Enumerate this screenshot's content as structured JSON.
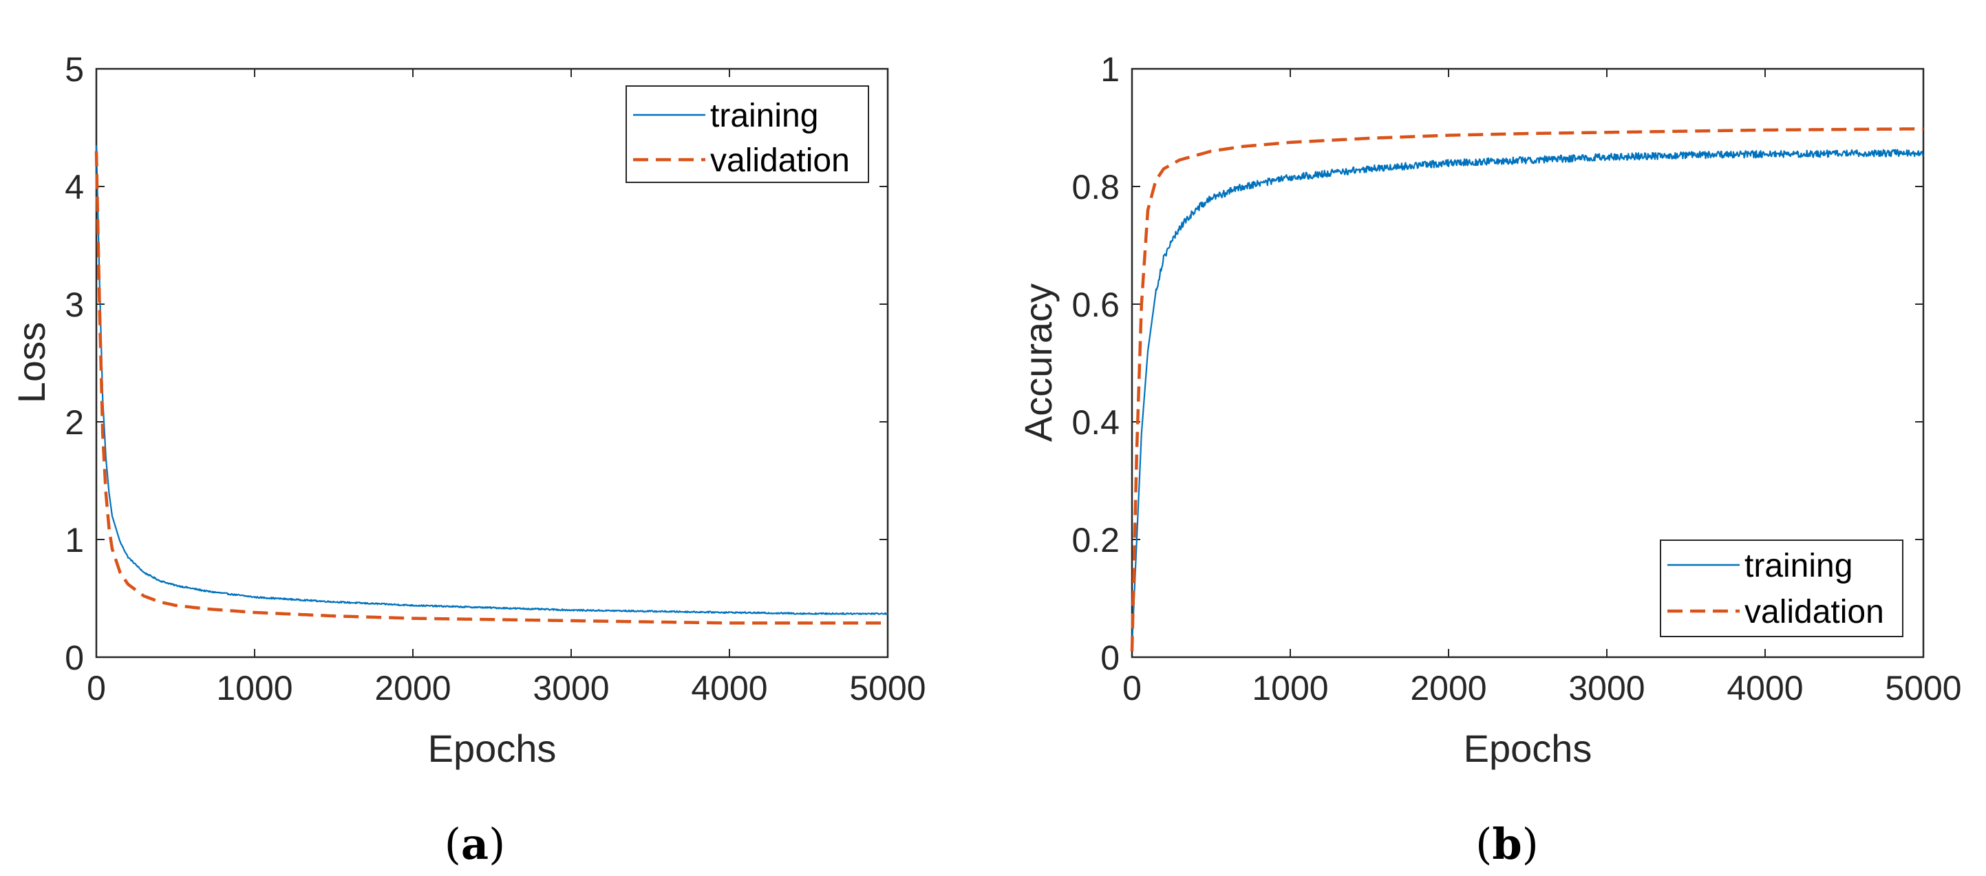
{
  "chart_data": [
    {
      "type": "line",
      "panel_label": "a",
      "xlabel": "Epochs",
      "ylabel": "Loss",
      "xlim": [
        0,
        5000
      ],
      "ylim": [
        0,
        5
      ],
      "xticks": [
        0,
        1000,
        2000,
        3000,
        4000,
        5000
      ],
      "yticks": [
        0,
        1,
        2,
        3,
        4,
        5
      ],
      "legend_position": "top-right",
      "series": [
        {
          "name": "training",
          "color": "#0072BD",
          "style": "solid",
          "noise": 0.006,
          "points": [
            [
              0,
              4.35
            ],
            [
              20,
              3.2
            ],
            [
              40,
              2.2
            ],
            [
              60,
              1.7
            ],
            [
              80,
              1.4
            ],
            [
              100,
              1.2
            ],
            [
              150,
              0.98
            ],
            [
              200,
              0.85
            ],
            [
              300,
              0.72
            ],
            [
              400,
              0.65
            ],
            [
              500,
              0.61
            ],
            [
              700,
              0.56
            ],
            [
              1000,
              0.51
            ],
            [
              1500,
              0.47
            ],
            [
              2000,
              0.44
            ],
            [
              2500,
              0.42
            ],
            [
              3000,
              0.4
            ],
            [
              3500,
              0.39
            ],
            [
              4000,
              0.38
            ],
            [
              4500,
              0.37
            ],
            [
              5000,
              0.37
            ]
          ]
        },
        {
          "name": "validation",
          "color": "#D95319",
          "style": "dashed",
          "noise": 0,
          "points": [
            [
              0,
              4.3
            ],
            [
              20,
              3.0
            ],
            [
              40,
              1.9
            ],
            [
              60,
              1.4
            ],
            [
              80,
              1.1
            ],
            [
              100,
              0.92
            ],
            [
              150,
              0.72
            ],
            [
              200,
              0.62
            ],
            [
              300,
              0.52
            ],
            [
              400,
              0.47
            ],
            [
              500,
              0.44
            ],
            [
              700,
              0.41
            ],
            [
              1000,
              0.38
            ],
            [
              1500,
              0.35
            ],
            [
              2000,
              0.33
            ],
            [
              2500,
              0.32
            ],
            [
              3000,
              0.31
            ],
            [
              3500,
              0.3
            ],
            [
              4000,
              0.29
            ],
            [
              4500,
              0.29
            ],
            [
              5000,
              0.29
            ]
          ]
        }
      ]
    },
    {
      "type": "line",
      "panel_label": "b",
      "xlabel": "Epochs",
      "ylabel": "Accuracy",
      "xlim": [
        0,
        5000
      ],
      "ylim": [
        0,
        1
      ],
      "xticks": [
        0,
        1000,
        2000,
        3000,
        4000,
        5000
      ],
      "yticks": [
        0,
        0.2,
        0.4,
        0.6,
        0.8,
        1
      ],
      "ytick_labels": [
        "0",
        "0.2",
        "0.4",
        "0.6",
        "0.8",
        "1"
      ],
      "legend_position": "bottom-right",
      "series": [
        {
          "name": "training",
          "color": "#0072BD",
          "style": "solid",
          "noise": 0.006,
          "points": [
            [
              0,
              0.02
            ],
            [
              30,
              0.2
            ],
            [
              60,
              0.38
            ],
            [
              100,
              0.52
            ],
            [
              150,
              0.62
            ],
            [
              200,
              0.68
            ],
            [
              300,
              0.73
            ],
            [
              400,
              0.76
            ],
            [
              500,
              0.78
            ],
            [
              700,
              0.8
            ],
            [
              1000,
              0.815
            ],
            [
              1500,
              0.83
            ],
            [
              2000,
              0.84
            ],
            [
              2500,
              0.845
            ],
            [
              3000,
              0.85
            ],
            [
              3500,
              0.853
            ],
            [
              4000,
              0.855
            ],
            [
              4500,
              0.856
            ],
            [
              5000,
              0.857
            ]
          ]
        },
        {
          "name": "validation",
          "color": "#D95319",
          "style": "dashed",
          "noise": 0,
          "points": [
            [
              0,
              0.01
            ],
            [
              30,
              0.35
            ],
            [
              60,
              0.6
            ],
            [
              100,
              0.76
            ],
            [
              150,
              0.81
            ],
            [
              200,
              0.83
            ],
            [
              300,
              0.845
            ],
            [
              500,
              0.86
            ],
            [
              700,
              0.868
            ],
            [
              1000,
              0.875
            ],
            [
              1500,
              0.882
            ],
            [
              2000,
              0.887
            ],
            [
              2500,
              0.89
            ],
            [
              3000,
              0.892
            ],
            [
              3500,
              0.894
            ],
            [
              4000,
              0.896
            ],
            [
              4500,
              0.897
            ],
            [
              5000,
              0.898
            ]
          ]
        }
      ]
    }
  ],
  "captions": [
    {
      "open": "(",
      "label": "a",
      "close": ")"
    },
    {
      "open": "(",
      "label": "b",
      "close": ")"
    }
  ]
}
